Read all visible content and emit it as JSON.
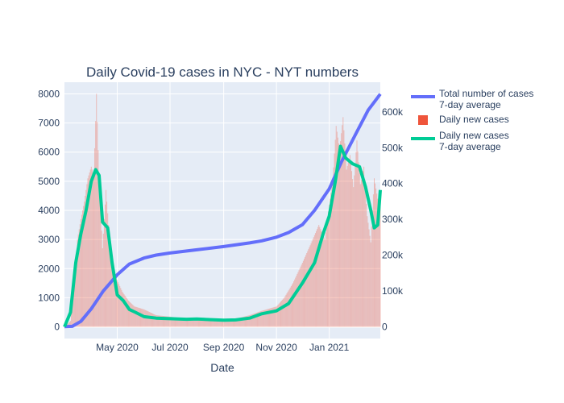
{
  "chart_data": {
    "type": "bar+line",
    "title": "Daily Covid-19 cases in NYC - NYT numbers",
    "xlabel": "Date",
    "ylabel": "",
    "y2label": "",
    "x_range": [
      "2020-03-01",
      "2021-03-01"
    ],
    "x_ticks": [
      {
        "date": "2020-05-01",
        "label": "May 2020"
      },
      {
        "date": "2020-07-01",
        "label": "Jul 2020"
      },
      {
        "date": "2020-09-01",
        "label": "Sep 2020"
      },
      {
        "date": "2020-11-01",
        "label": "Nov 2020"
      },
      {
        "date": "2021-01-01",
        "label": "Jan 2021"
      }
    ],
    "ylim": [
      -400,
      8400
    ],
    "y_ticks": [
      0,
      1000,
      2000,
      3000,
      4000,
      5000,
      6000,
      7000,
      8000
    ],
    "y_tick_labels": [
      "0",
      "1000",
      "2000",
      "3000",
      "4000",
      "5000",
      "6000",
      "7000",
      "8000"
    ],
    "y2lim": [
      -33000,
      683000
    ],
    "y2_ticks": [
      0,
      100000,
      200000,
      300000,
      400000,
      500000,
      600000
    ],
    "y2_tick_labels": [
      "0",
      "100k",
      "200k",
      "300k",
      "400k",
      "500k",
      "600k"
    ],
    "grid": true,
    "legend_position": "top-right",
    "colors": {
      "total": "#636efa",
      "daily": "#ef553b",
      "avg": "#00cc96",
      "plot_bg": "#e5ecf6",
      "grid": "#ffffff"
    },
    "series": [
      {
        "name": "Total number of cases\n7-day average",
        "axis": "y2",
        "type": "line",
        "points": [
          [
            "2020-03-01",
            0
          ],
          [
            "2020-03-10",
            1000
          ],
          [
            "2020-03-20",
            15000
          ],
          [
            "2020-04-01",
            50000
          ],
          [
            "2020-04-15",
            100000
          ],
          [
            "2020-05-01",
            145000
          ],
          [
            "2020-05-15",
            175000
          ],
          [
            "2020-06-01",
            192000
          ],
          [
            "2020-06-15",
            200000
          ],
          [
            "2020-07-01",
            206000
          ],
          [
            "2020-08-01",
            215000
          ],
          [
            "2020-09-01",
            224000
          ],
          [
            "2020-10-01",
            234000
          ],
          [
            "2020-10-15",
            240000
          ],
          [
            "2020-11-01",
            250000
          ],
          [
            "2020-11-15",
            263000
          ],
          [
            "2020-12-01",
            285000
          ],
          [
            "2020-12-15",
            325000
          ],
          [
            "2021-01-01",
            385000
          ],
          [
            "2021-01-15",
            460000
          ],
          [
            "2021-02-01",
            540000
          ],
          [
            "2021-02-15",
            605000
          ],
          [
            "2021-03-01",
            650000
          ]
        ]
      },
      {
        "name": "Daily new cases",
        "axis": "y",
        "type": "bar",
        "points": [
          [
            "2020-03-01",
            0
          ],
          [
            "2020-03-08",
            200
          ],
          [
            "2020-03-12",
            1500
          ],
          [
            "2020-03-16",
            3000
          ],
          [
            "2020-03-20",
            3700
          ],
          [
            "2020-03-24",
            4300
          ],
          [
            "2020-03-28",
            5100
          ],
          [
            "2020-04-01",
            5500
          ],
          [
            "2020-04-04",
            5200
          ],
          [
            "2020-04-07",
            8000
          ],
          [
            "2020-04-10",
            5100
          ],
          [
            "2020-04-14",
            2700
          ],
          [
            "2020-04-18",
            4700
          ],
          [
            "2020-04-22",
            3100
          ],
          [
            "2020-04-27",
            2000
          ],
          [
            "2020-05-01",
            1600
          ],
          [
            "2020-05-07",
            1200
          ],
          [
            "2020-05-14",
            900
          ],
          [
            "2020-05-21",
            700
          ],
          [
            "2020-06-01",
            600
          ],
          [
            "2020-06-15",
            400
          ],
          [
            "2020-07-01",
            350
          ],
          [
            "2020-07-15",
            300
          ],
          [
            "2020-08-01",
            300
          ],
          [
            "2020-08-15",
            280
          ],
          [
            "2020-09-01",
            250
          ],
          [
            "2020-09-15",
            280
          ],
          [
            "2020-10-01",
            400
          ],
          [
            "2020-10-15",
            550
          ],
          [
            "2020-11-01",
            700
          ],
          [
            "2020-11-10",
            1000
          ],
          [
            "2020-11-20",
            1500
          ],
          [
            "2020-12-01",
            2200
          ],
          [
            "2020-12-10",
            2800
          ],
          [
            "2020-12-20",
            3500
          ],
          [
            "2020-12-27",
            3000
          ],
          [
            "2021-01-01",
            4200
          ],
          [
            "2021-01-05",
            5000
          ],
          [
            "2021-01-09",
            6900
          ],
          [
            "2021-01-13",
            6100
          ],
          [
            "2021-01-17",
            7200
          ],
          [
            "2021-01-21",
            5400
          ],
          [
            "2021-01-25",
            5900
          ],
          [
            "2021-01-29",
            4800
          ],
          [
            "2021-02-02",
            6400
          ],
          [
            "2021-02-06",
            4900
          ],
          [
            "2021-02-10",
            5500
          ],
          [
            "2021-02-14",
            3800
          ],
          [
            "2021-02-18",
            2900
          ],
          [
            "2021-02-22",
            5100
          ],
          [
            "2021-02-26",
            4400
          ],
          [
            "2021-03-01",
            4200
          ]
        ]
      },
      {
        "name": "Daily new cases\n7-day average",
        "axis": "y",
        "type": "line",
        "points": [
          [
            "2020-03-01",
            0
          ],
          [
            "2020-03-08",
            500
          ],
          [
            "2020-03-14",
            2200
          ],
          [
            "2020-03-20",
            3200
          ],
          [
            "2020-03-26",
            4000
          ],
          [
            "2020-04-01",
            5000
          ],
          [
            "2020-04-06",
            5400
          ],
          [
            "2020-04-10",
            5200
          ],
          [
            "2020-04-14",
            3600
          ],
          [
            "2020-04-20",
            3400
          ],
          [
            "2020-04-25",
            2200
          ],
          [
            "2020-05-01",
            1100
          ],
          [
            "2020-05-08",
            900
          ],
          [
            "2020-05-15",
            600
          ],
          [
            "2020-05-22",
            500
          ],
          [
            "2020-06-01",
            350
          ],
          [
            "2020-06-15",
            300
          ],
          [
            "2020-07-01",
            280
          ],
          [
            "2020-07-20",
            260
          ],
          [
            "2020-08-01",
            270
          ],
          [
            "2020-08-15",
            250
          ],
          [
            "2020-09-01",
            230
          ],
          [
            "2020-09-15",
            240
          ],
          [
            "2020-10-01",
            300
          ],
          [
            "2020-10-15",
            450
          ],
          [
            "2020-11-01",
            550
          ],
          [
            "2020-11-15",
            800
          ],
          [
            "2020-12-01",
            1500
          ],
          [
            "2020-12-15",
            2200
          ],
          [
            "2020-12-25",
            3200
          ],
          [
            "2021-01-01",
            3800
          ],
          [
            "2021-01-08",
            5000
          ],
          [
            "2021-01-14",
            6200
          ],
          [
            "2021-01-20",
            5800
          ],
          [
            "2021-01-28",
            5600
          ],
          [
            "2021-02-05",
            5500
          ],
          [
            "2021-02-12",
            4800
          ],
          [
            "2021-02-18",
            4000
          ],
          [
            "2021-02-22",
            3400
          ],
          [
            "2021-02-26",
            3500
          ],
          [
            "2021-03-01",
            4700
          ]
        ]
      }
    ]
  }
}
